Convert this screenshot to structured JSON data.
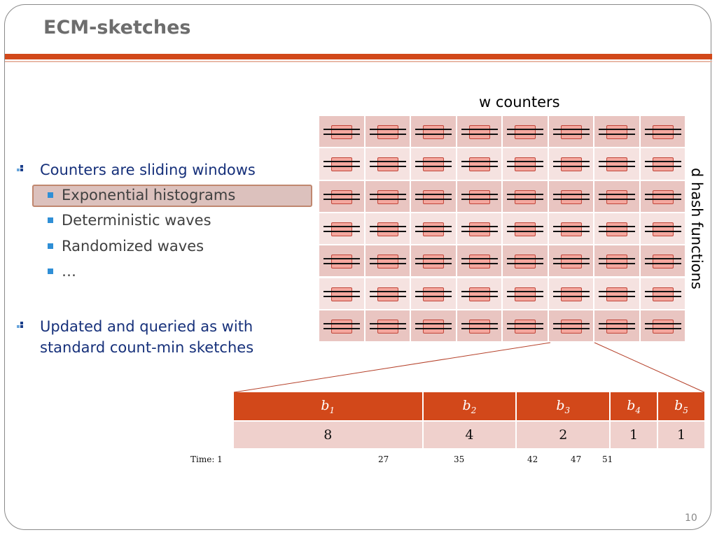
{
  "slide": {
    "title": "ECM-sketches",
    "page_number": "10"
  },
  "bullets": [
    {
      "text": "Counters are sliding windows",
      "subitems": [
        {
          "text": "Exponential histograms",
          "highlighted": true
        },
        {
          "text": "Deterministic waves",
          "highlighted": false
        },
        {
          "text": "Randomized waves",
          "highlighted": false
        },
        {
          "text": "…",
          "highlighted": false
        }
      ]
    },
    {
      "text": "Updated and queried as with standard count-min sketches",
      "subitems": []
    }
  ],
  "sketch": {
    "width_label": "w counters",
    "depth_label": "d hash functions",
    "columns": 8,
    "rows": 7
  },
  "buckets": {
    "headers": [
      "b",
      "b",
      "b",
      "b",
      "b"
    ],
    "header_subscripts": [
      "1",
      "2",
      "3",
      "4",
      "5"
    ],
    "counts": [
      "8",
      "4",
      "2",
      "1",
      "1"
    ]
  },
  "timeline": {
    "start": "Time: 1",
    "marks": [
      "27",
      "35",
      "42",
      "47",
      "51"
    ]
  },
  "colors": {
    "accent": "#d2481a",
    "bullet_text": "#16307a",
    "cell_dark": "#e9c5c1",
    "cell_light": "#f5e2e0"
  }
}
